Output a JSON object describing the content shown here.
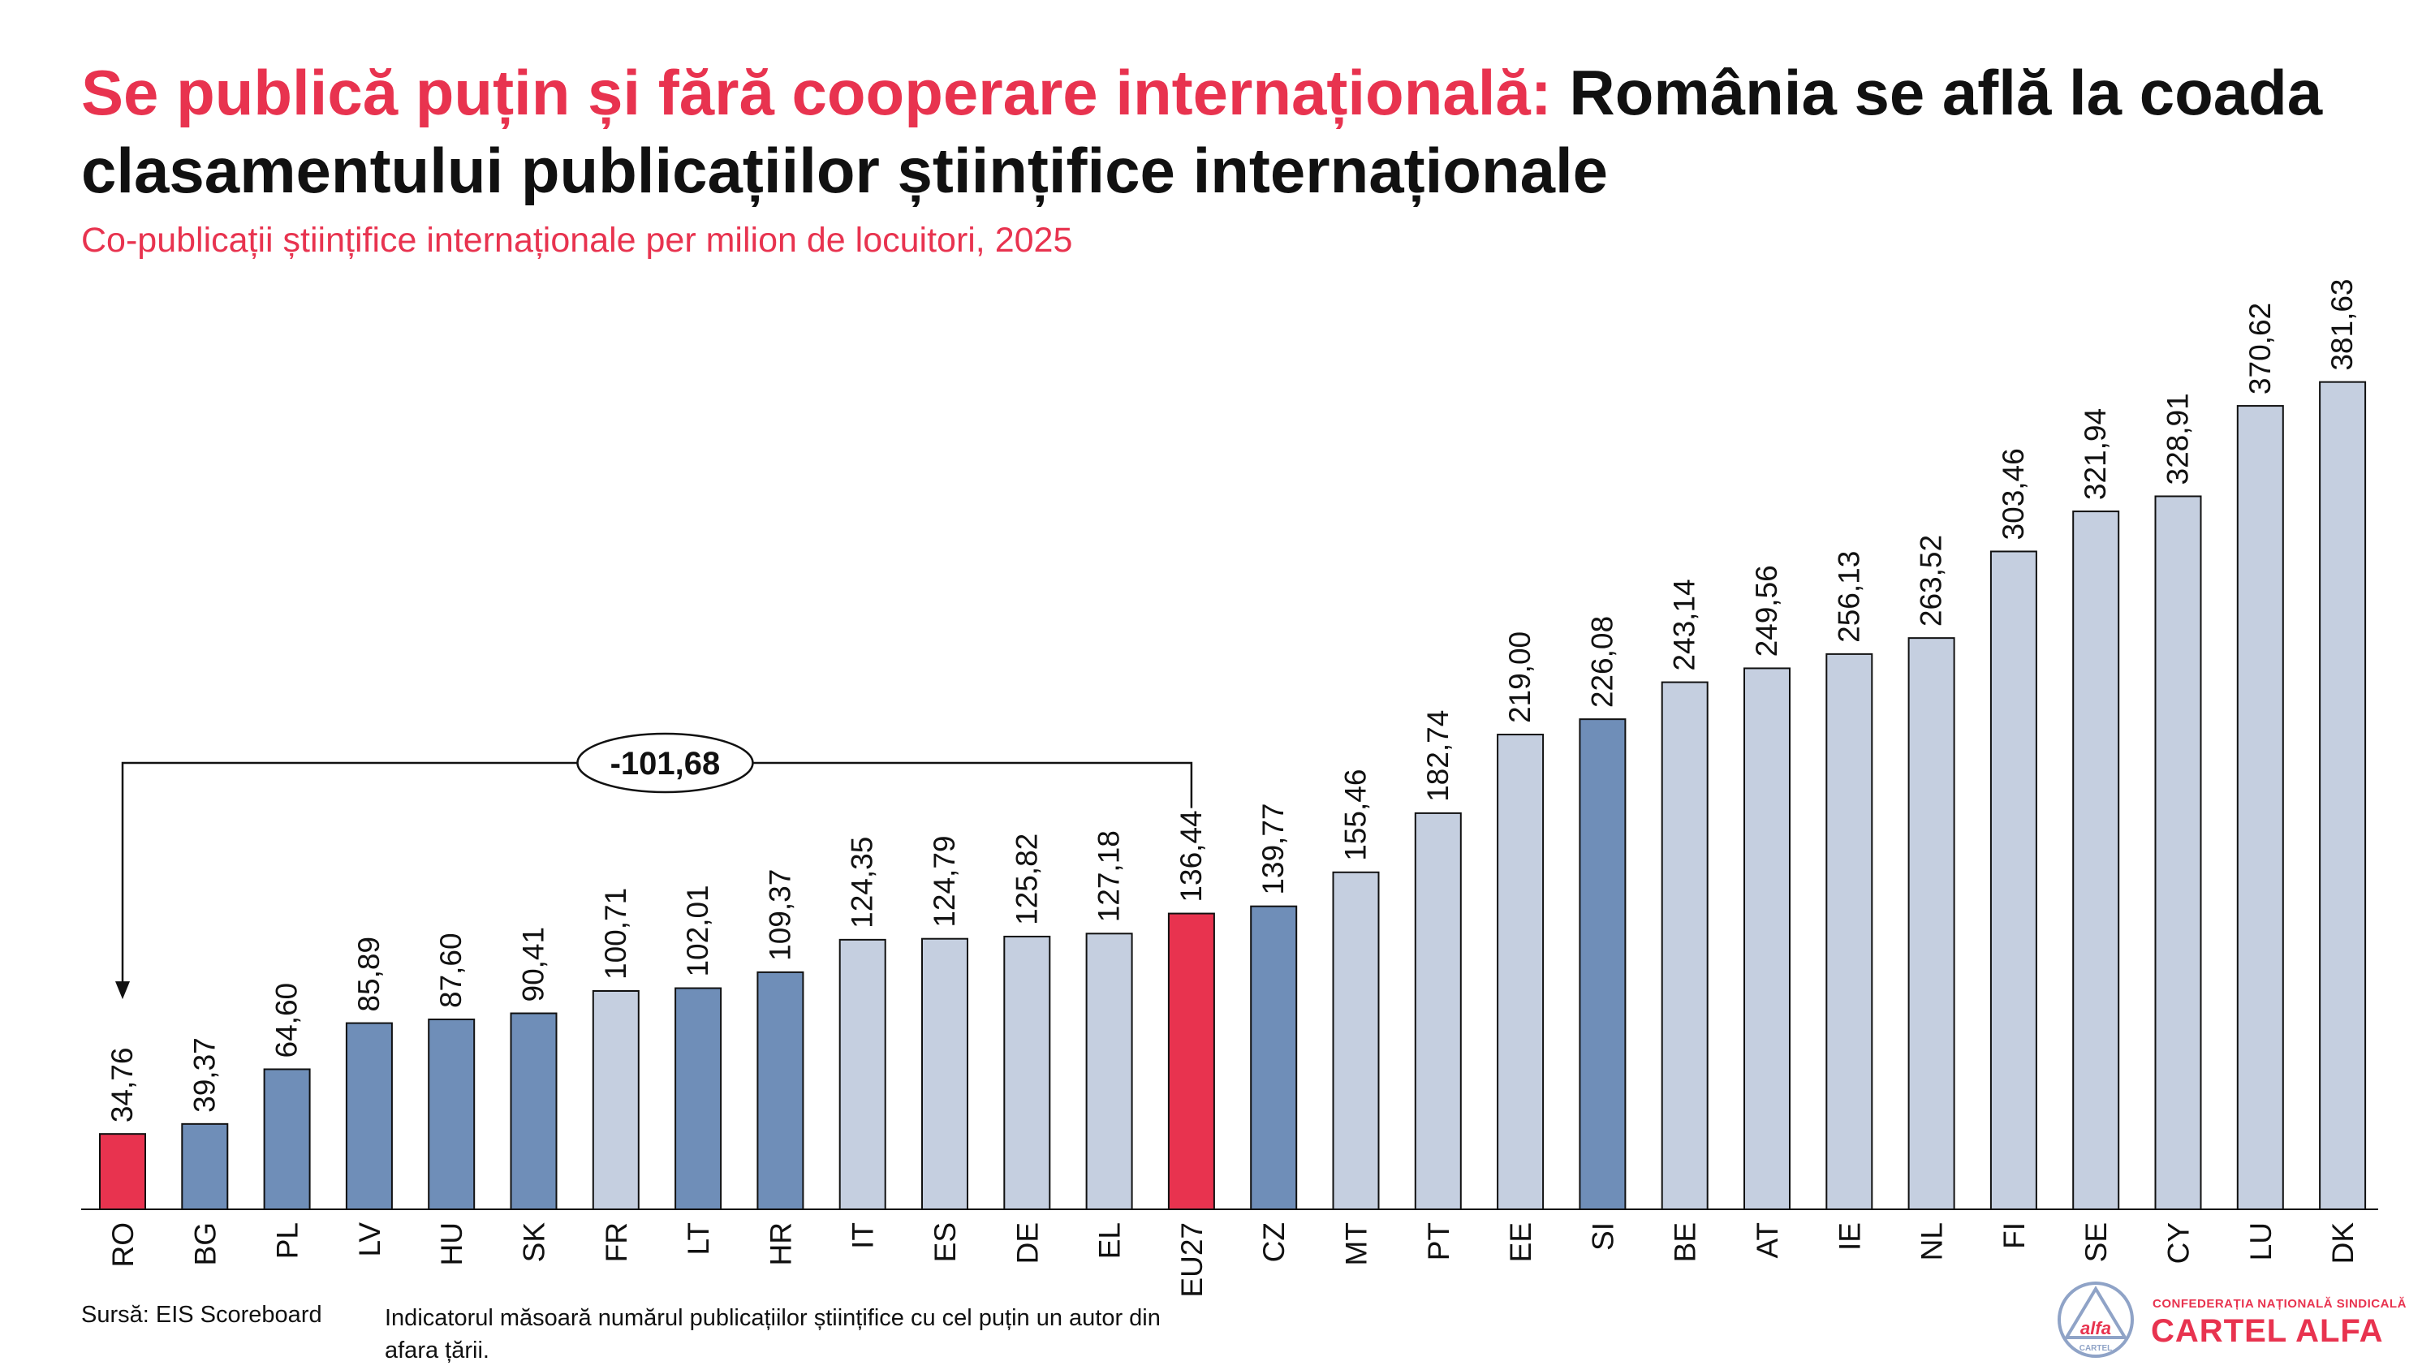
{
  "title": {
    "highlight": "Se publică puțin și fără cooperare internațională:",
    "rest": " România se află la coada clasamentului publicațiilor științifice internaționale"
  },
  "subtitle": "Co-publicații științifice internaționale per milion de locuitori, 2025",
  "footer": {
    "source": "Sursă: EIS Scoreboard",
    "note": "Indicatorul măsoară numărul publicațiilor științifice cu cel puțin un autor din afara țării."
  },
  "logo": {
    "mark_text": "alfa",
    "mark_sub": "CARTEL",
    "top_text": "CONFEDERAȚIA NAȚIONALĂ SINDICALĂ",
    "name": "CARTEL ALFA"
  },
  "colors": {
    "highlight": "#E8334F",
    "dark": "#6F8EB8",
    "light": "#C5CFE0",
    "text": "#111111",
    "logo_blue": "#8FA3C7"
  },
  "chart_data": {
    "type": "bar",
    "title": "Co-publicații științifice internaționale per milion de locuitori, 2025",
    "xlabel": "",
    "ylabel": "",
    "ylim": [
      0,
      400
    ],
    "grid": false,
    "categories": [
      "RO",
      "BG",
      "PL",
      "LV",
      "HU",
      "SK",
      "FR",
      "LT",
      "HR",
      "IT",
      "ES",
      "DE",
      "EL",
      "EU27",
      "CZ",
      "MT",
      "PT",
      "EE",
      "SI",
      "BE",
      "AT",
      "IE",
      "NL",
      "FI",
      "SE",
      "CY",
      "LU",
      "DK"
    ],
    "values": [
      34.76,
      39.37,
      64.6,
      85.89,
      87.6,
      90.41,
      100.71,
      102.01,
      109.37,
      124.35,
      124.79,
      125.82,
      127.18,
      136.44,
      139.77,
      155.46,
      182.74,
      219.0,
      226.08,
      243.14,
      249.56,
      256.13,
      263.52,
      303.46,
      321.94,
      328.91,
      370.62,
      381.63
    ],
    "value_labels": [
      "34,76",
      "39,37",
      "64,60",
      "85,89",
      "87,60",
      "90,41",
      "100,71",
      "102,01",
      "109,37",
      "124,35",
      "124,79",
      "125,82",
      "127,18",
      "136,44",
      "139,77",
      "155,46",
      "182,74",
      "219,00",
      "226,08",
      "243,14",
      "249,56",
      "256,13",
      "263,52",
      "303,46",
      "321,94",
      "328,91",
      "370,62",
      "381,63"
    ],
    "bar_colors": [
      "highlight",
      "dark",
      "dark",
      "dark",
      "dark",
      "dark",
      "light",
      "dark",
      "dark",
      "light",
      "light",
      "light",
      "light",
      "highlight",
      "dark",
      "light",
      "light",
      "light",
      "dark",
      "light",
      "light",
      "light",
      "light",
      "light",
      "light",
      "light",
      "light",
      "light"
    ],
    "annotation": {
      "label": "-101,68",
      "value": -101.68,
      "from": "EU27",
      "to": "RO"
    }
  }
}
